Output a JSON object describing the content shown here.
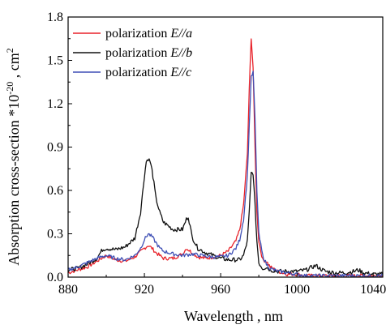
{
  "chart_data": {
    "type": "line",
    "xlabel": "Wavelength , nm",
    "ylabel_prefix": "Absorption cross-section *10",
    "ylabel_exp": "-20",
    "ylabel_mid": " , cm",
    "ylabel_exp2": "2",
    "xlim": [
      880,
      1045
    ],
    "ylim": [
      0.0,
      1.8
    ],
    "xticks": [
      880,
      920,
      960,
      1000,
      1040
    ],
    "xtick_labels": [
      "880",
      "920",
      "960",
      "1000",
      "1040"
    ],
    "yticks": [
      0.0,
      0.3,
      0.6,
      0.9,
      1.2,
      1.5,
      1.8
    ],
    "ytick_labels": [
      "0.0",
      "0.3",
      "0.6",
      "0.9",
      "1.2",
      "1.5",
      "1.8"
    ],
    "legend": {
      "position": "top-left",
      "prefix": "polarization "
    },
    "series": [
      {
        "name": "polarization E//a",
        "italic_part": "E//a",
        "color": "#e8222a",
        "x": [
          880,
          885,
          890,
          895,
          900,
          905,
          910,
          915,
          920,
          922,
          924,
          926,
          930,
          935,
          940,
          942,
          944,
          948,
          952,
          956,
          960,
          964,
          968,
          970,
          972,
          974,
          975,
          976,
          977,
          978,
          979,
          980,
          982,
          984,
          986,
          990,
          995,
          1000,
          1005,
          1010,
          1015,
          1020,
          1025,
          1030,
          1035,
          1040,
          1045
        ],
        "values": [
          0.03,
          0.05,
          0.07,
          0.11,
          0.15,
          0.12,
          0.11,
          0.14,
          0.2,
          0.22,
          0.2,
          0.17,
          0.13,
          0.13,
          0.16,
          0.2,
          0.18,
          0.14,
          0.13,
          0.14,
          0.15,
          0.18,
          0.25,
          0.33,
          0.5,
          0.85,
          1.3,
          1.66,
          1.45,
          0.9,
          0.45,
          0.25,
          0.12,
          0.11,
          0.07,
          0.04,
          0.02,
          0.02,
          0.01,
          0.01,
          0.01,
          0.01,
          0.01,
          0.01,
          0.01,
          0.01,
          0.01
        ]
      },
      {
        "name": "polarization E//b",
        "italic_part": "E//b",
        "color": "#111111",
        "x": [
          880,
          885,
          890,
          895,
          898,
          900,
          905,
          910,
          915,
          918,
          920,
          921,
          922,
          923,
          924,
          925,
          926,
          928,
          930,
          935,
          940,
          942,
          943,
          945,
          948,
          952,
          956,
          960,
          964,
          968,
          970,
          972,
          974,
          975,
          976,
          977,
          978,
          979,
          980,
          982,
          984,
          986,
          990,
          995,
          1000,
          1005,
          1008,
          1010,
          1012,
          1015,
          1020,
          1025,
          1030,
          1032,
          1035,
          1040,
          1045
        ],
        "values": [
          0.05,
          0.06,
          0.09,
          0.13,
          0.19,
          0.2,
          0.19,
          0.21,
          0.27,
          0.45,
          0.7,
          0.8,
          0.82,
          0.8,
          0.74,
          0.65,
          0.55,
          0.45,
          0.38,
          0.33,
          0.33,
          0.4,
          0.42,
          0.28,
          0.2,
          0.17,
          0.15,
          0.13,
          0.12,
          0.12,
          0.12,
          0.15,
          0.25,
          0.45,
          0.72,
          0.72,
          0.5,
          0.25,
          0.1,
          0.06,
          0.07,
          0.05,
          0.04,
          0.04,
          0.04,
          0.05,
          0.07,
          0.08,
          0.06,
          0.04,
          0.03,
          0.03,
          0.04,
          0.05,
          0.03,
          0.02,
          0.02
        ]
      },
      {
        "name": "polarization E//c",
        "italic_part": "E//c",
        "color": "#3e4fb5",
        "x": [
          880,
          885,
          890,
          895,
          900,
          905,
          910,
          915,
          918,
          920,
          922,
          924,
          926,
          928,
          930,
          935,
          940,
          945,
          950,
          955,
          960,
          964,
          968,
          970,
          972,
          974,
          975,
          976,
          977,
          978,
          979,
          980,
          982,
          984,
          986,
          990,
          995,
          1000,
          1005,
          1010,
          1015,
          1020,
          1025,
          1030,
          1035,
          1040,
          1045
        ],
        "values": [
          0.05,
          0.07,
          0.1,
          0.13,
          0.15,
          0.13,
          0.12,
          0.15,
          0.2,
          0.26,
          0.3,
          0.28,
          0.24,
          0.2,
          0.18,
          0.16,
          0.15,
          0.16,
          0.15,
          0.14,
          0.14,
          0.15,
          0.2,
          0.26,
          0.4,
          0.7,
          1.05,
          1.38,
          1.42,
          1.1,
          0.6,
          0.3,
          0.15,
          0.09,
          0.06,
          0.04,
          0.03,
          0.02,
          0.01,
          0.01,
          0.01,
          0.01,
          0.01,
          0.01,
          0.01,
          0.01,
          0.01
        ]
      }
    ]
  }
}
